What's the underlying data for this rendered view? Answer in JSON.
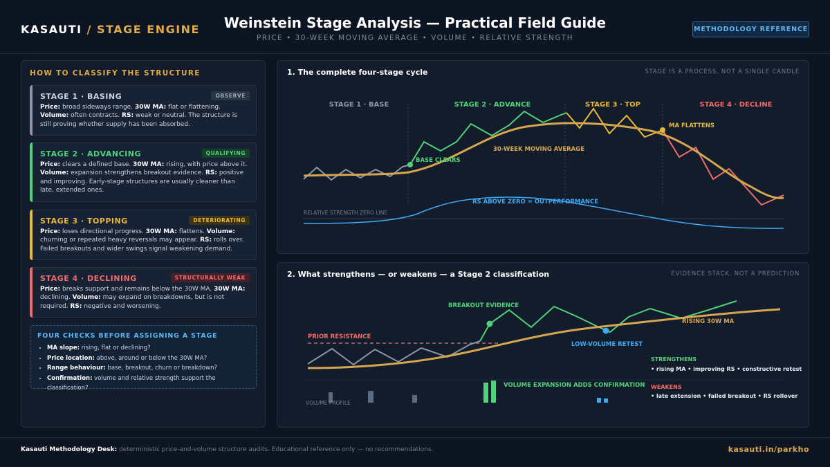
{
  "header": {
    "brand_main": "KASAUTI",
    "brand_sep": " / ",
    "brand_sub": "STAGE ENGINE",
    "title": "Weinstein Stage Analysis — Practical Field Guide",
    "subtitle": "PRICE • 30-WEEK MOVING AVERAGE • VOLUME • RELATIVE STRENGTH",
    "method_button": "METHODOLOGY REFERENCE"
  },
  "left_panel": {
    "heading": "HOW TO CLASSIFY THE STRUCTURE",
    "stages": [
      {
        "name": "STAGE 1 · BASING",
        "badge": "OBSERVE",
        "color": "#8a97a8",
        "badge_bg": "#2a3546",
        "badge_color": "#9aa6b6",
        "price_label": "Price:",
        "price_text": " broad sideways range. ",
        "ma_label": "30W MA:",
        "ma_text": " flat or flattening. ",
        "vol_label": "Volume:",
        "vol_text": " often contracts. ",
        "rs_label": "RS:",
        "rs_text": " weak or neutral. The structure is still proving whether supply has been absorbed."
      },
      {
        "name": "STAGE 2 · ADVANCING",
        "badge": "QUALIFYING",
        "color": "#4fd27a",
        "badge_bg": "#17402a",
        "badge_color": "#4fd27a",
        "price_label": "Price:",
        "price_text": " clears a defined base. ",
        "ma_label": "30W MA:",
        "ma_text": " rising, with price above it. ",
        "vol_label": "Volume:",
        "vol_text": " expansion strengthens breakout evidence. ",
        "rs_label": "RS:",
        "rs_text": " positive and improving. Early-stage structures are usually cleaner than late, extended ones."
      },
      {
        "name": "STAGE 3 · TOPPING",
        "badge": "DETERIORATING",
        "color": "#e8b93a",
        "badge_bg": "#3d3416",
        "badge_color": "#e8b93a",
        "price_label": "Price:",
        "price_text": " loses directional progress. ",
        "ma_label": "30W MA:",
        "ma_text": " flattens. ",
        "vol_label": "Volume:",
        "vol_text": " churning or repeated heavy reversals may appear. ",
        "rs_label": "RS:",
        "rs_text": " rolls over. Failed breakouts and wider swings signal weakening demand."
      },
      {
        "name": "STAGE 4 · DECLINING",
        "badge": "STRUCTURALLY WEAK",
        "color": "#f06b6b",
        "badge_bg": "#45202a",
        "badge_color": "#f06b6b",
        "price_label": "Price:",
        "price_text": " breaks support and remains below the 30W MA. ",
        "ma_label": "30W MA:",
        "ma_text": " declining. ",
        "vol_label": "Volume:",
        "vol_text": " may expand on breakdowns, but is not required. ",
        "rs_label": "RS:",
        "rs_text": " negative and worsening."
      }
    ],
    "checks": {
      "title": "FOUR CHECKS BEFORE ASSIGNING A STAGE",
      "items": [
        {
          "label": "MA slope:",
          "text": " rising, flat or declining?"
        },
        {
          "label": "Price location:",
          "text": " above, around or below the 30W MA?"
        },
        {
          "label": "Range behaviour:",
          "text": " base, breakout, churn or breakdown?"
        },
        {
          "label": "Confirmation:",
          "text": " volume and relative strength support the classification?"
        }
      ]
    }
  },
  "panel1": {
    "title": "1. The complete four-stage cycle",
    "note": "STAGE IS A PROCESS, NOT A SINGLE CANDLE",
    "stage_labels": [
      "STAGE 1 · BASE",
      "STAGE 2 · ADVANCE",
      "STAGE 3 · TOP",
      "STAGE 4 · DECLINE"
    ],
    "annotations": {
      "base_clears": "BASE CLEARS",
      "ma_label": "30-WEEK MOVING AVERAGE",
      "ma_flattens": "MA FLATTENS",
      "rs_zero": "RELATIVE STRENGTH ZERO LINE",
      "rs_above": "RS ABOVE ZERO = OUTPERFORMANCE"
    },
    "colors": {
      "stage1": "#8a97a8",
      "stage2": "#4fd27a",
      "stage3": "#e8b93a",
      "stage4": "#f06b6b",
      "ma": "#d6a650",
      "rs": "#3fa9f5"
    }
  },
  "panel2": {
    "title": "2. What strengthens — or weakens — a Stage 2 classification",
    "note": "EVIDENCE STACK, NOT A PREDICTION",
    "annotations": {
      "breakout": "BREAKOUT EVIDENCE",
      "prior_resistance": "PRIOR RESISTANCE",
      "low_volume_retest": "LOW-VOLUME RETEST",
      "rising_ma": "RISING 30W MA",
      "volume_expansion": "VOLUME EXPANSION ADDS CONFIRMATION",
      "volume_profile": "VOLUME PROFILE",
      "strengthens_title": "STRENGTHENS",
      "strengthens_text": "• rising MA • improving RS • constructive retest",
      "weakens_title": "WEAKENS",
      "weakens_text": "• late extension • failed breakout • RS rollover"
    }
  },
  "footer": {
    "left_bold": "Kasauti Methodology Desk:",
    "left_text": " deterministic price-and-volume structure audits. Educational reference only — no recommendations.",
    "right": "kasauti.in/parkho"
  }
}
